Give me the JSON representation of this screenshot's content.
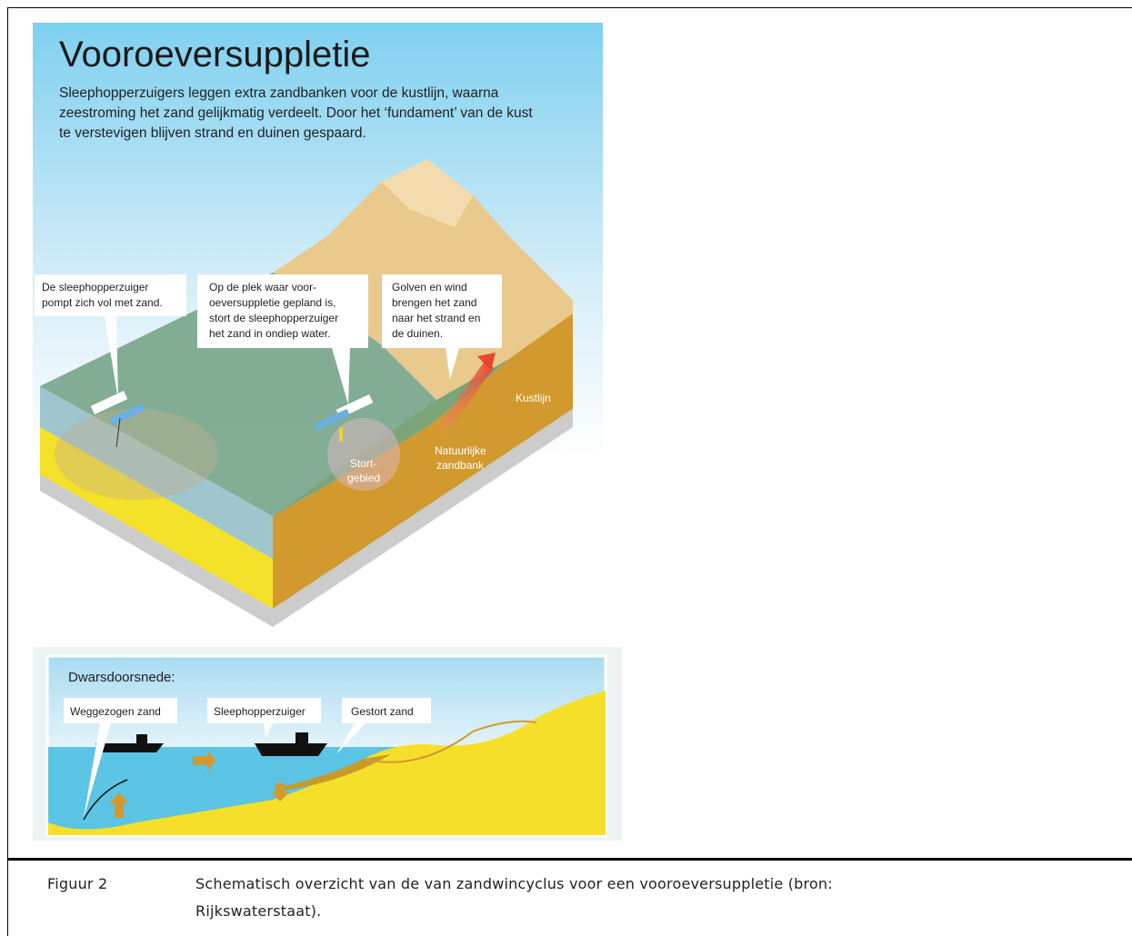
{
  "figure": {
    "title": "Vooroeversuppletie",
    "intro": [
      "Sleephopperzuigers leggen extra zandbanken voor de kustlijn, waarna",
      "zeestroming het zand gelijkmatig verdeelt. Door het ‘fundament’ van de kust",
      "te verstevigen blijven strand en duinen gespaard."
    ],
    "callouts": [
      [
        "De sleephopperzuiger",
        "pompt zich vol met zand."
      ],
      [
        "Op de plek waar voor-",
        "oeversuppletie gepland is,",
        "stort de sleephopperzuiger",
        "het zand in ondiep water."
      ],
      [
        "Golven en wind",
        "brengen het zand",
        "naar het strand en",
        "de duinen."
      ]
    ],
    "labels": {
      "coastline": "Kustlijn",
      "sandbank": [
        "Natuurlijke",
        "zandbank"
      ],
      "dump_area": [
        "Stort-",
        "gebied"
      ]
    },
    "cross_section": {
      "title": "Dwarsdoorsnede:",
      "labels": [
        "Weggezogen zand",
        "Sleephopperzuiger",
        "Gestort zand"
      ]
    }
  },
  "caption": {
    "number": "Figuur 2",
    "text": [
      "Schematisch overzicht van de van zandwincyclus voor een vooroeversuppletie (bron:",
      "Rijkswaterstaat)."
    ]
  }
}
